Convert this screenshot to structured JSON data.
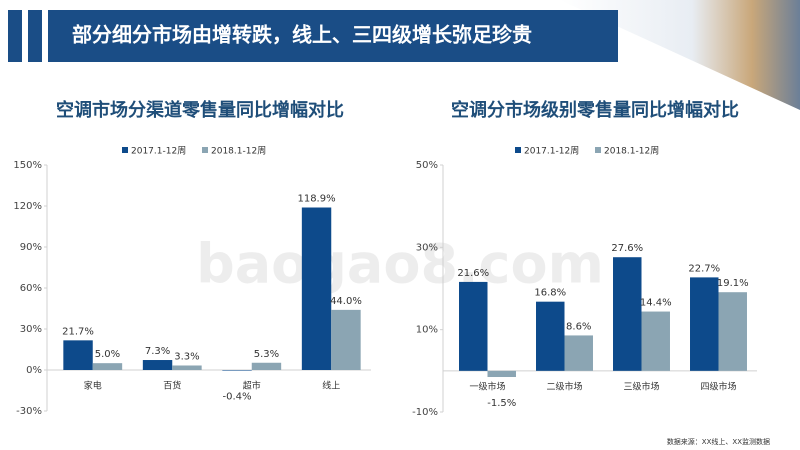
{
  "header": {
    "title": "部分细分市场由增转跌，线上、三四级增长弥足珍贵"
  },
  "watermark": "baogao8.com",
  "source": "数据来源：XX线上、XX监测数据",
  "chart_data": [
    {
      "type": "bar",
      "title": "空调市场分渠道零售量同比增幅对比",
      "categories": [
        "家电",
        "百货",
        "超市",
        "线上"
      ],
      "series": [
        {
          "name": "2017.1-12周",
          "color": "#0d4a8b",
          "values": [
            21.7,
            7.3,
            -0.4,
            118.9
          ],
          "value_labels": [
            "21.7%",
            "7.3%",
            "-0.4%",
            "118.9%"
          ]
        },
        {
          "name": "2018.1-12周",
          "color": "#8ba5b3",
          "values": [
            5.0,
            3.3,
            5.3,
            44.0
          ],
          "value_labels": [
            "5.0%",
            "3.3%",
            "5.3%",
            "44.0%"
          ]
        }
      ],
      "ylim": [
        -30,
        150
      ],
      "yticks": [
        {
          "value": -30,
          "label": "-30%"
        },
        {
          "value": 0,
          "label": "0%"
        },
        {
          "value": 30,
          "label": "30%"
        },
        {
          "value": 60,
          "label": "60%"
        },
        {
          "value": 90,
          "label": "90%"
        },
        {
          "value": 120,
          "label": "120%"
        },
        {
          "value": 150,
          "label": "150%"
        }
      ],
      "grid": false
    },
    {
      "type": "bar",
      "title": "空调分市场级别零售量同比增幅对比",
      "categories": [
        "一级市场",
        "二级市场",
        "三级市场",
        "四级市场"
      ],
      "series": [
        {
          "name": "2017.1-12周",
          "color": "#0d4a8b",
          "values": [
            21.6,
            16.8,
            27.6,
            22.7
          ],
          "value_labels": [
            "21.6%",
            "16.8%",
            "27.6%",
            "22.7%"
          ]
        },
        {
          "name": "2018.1-12周",
          "color": "#8ba5b3",
          "values": [
            -1.5,
            8.6,
            14.4,
            19.1
          ],
          "value_labels": [
            "-1.5%",
            "8.6%",
            "14.4%",
            "19.1%"
          ]
        }
      ],
      "ylim": [
        -10,
        50
      ],
      "yticks": [
        {
          "value": -10,
          "label": "-10%"
        },
        {
          "value": 10,
          "label": "10%"
        },
        {
          "value": 30,
          "label": "30%"
        },
        {
          "value": 50,
          "label": "50%"
        }
      ],
      "grid": false
    }
  ]
}
